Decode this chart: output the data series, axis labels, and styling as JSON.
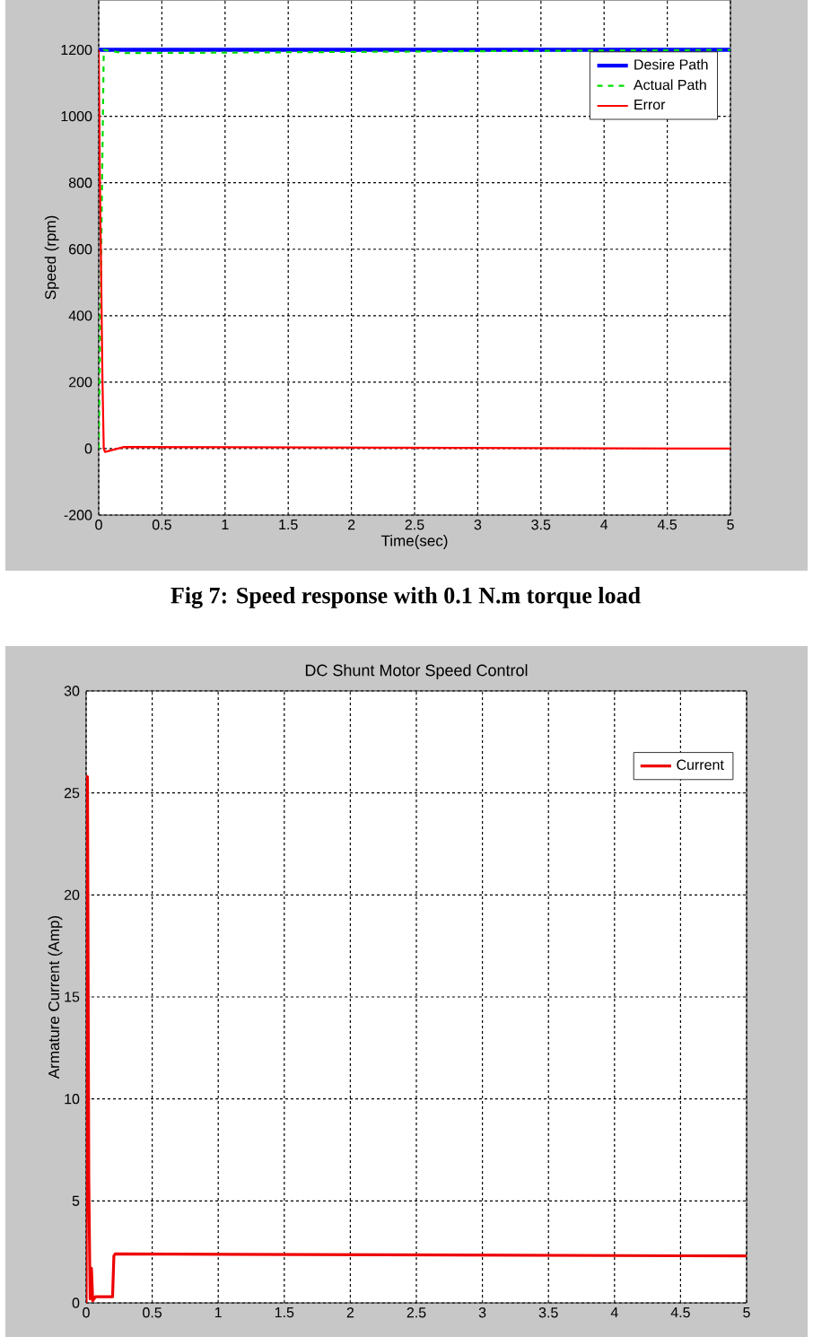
{
  "chart_data": [
    {
      "type": "line",
      "xlabel": "Time(sec)",
      "ylabel": "Speed (rpm)",
      "annotations": [
        "Fig 7: Speed response with 0.1 N.m torque load"
      ],
      "xlim": [
        0,
        5
      ],
      "ylim": [
        -200,
        1350
      ],
      "xticks": [
        0,
        0.5,
        1,
        1.5,
        2,
        2.5,
        3,
        3.5,
        4,
        4.5,
        5
      ],
      "yticks": [
        -200,
        0,
        200,
        400,
        600,
        800,
        1000,
        1200
      ],
      "grid": true,
      "legend": "top right",
      "series": [
        {
          "name": "Desire Path",
          "color": "#0000ff",
          "line_style": "solid",
          "x": [
            0,
            5
          ],
          "values": [
            1200,
            1200
          ]
        },
        {
          "name": "Actual Path",
          "color": "#00dd00",
          "line_style": "dashed",
          "x": [
            0,
            0.02,
            0.04,
            0.2,
            5
          ],
          "values": [
            0,
            600,
            1200,
            1190,
            1200
          ]
        },
        {
          "name": "Error",
          "color": "#ff0000",
          "line_style": "solid",
          "x": [
            0,
            0.01,
            0.03,
            0.04,
            0.05,
            0.2,
            5
          ],
          "values": [
            1200,
            800,
            200,
            0,
            -10,
            5,
            0
          ]
        }
      ]
    },
    {
      "type": "line",
      "title": "DC Shunt Motor Speed Control",
      "ylabel": "Armature Current (Amp)",
      "xlim": [
        0,
        5
      ],
      "ylim": [
        0,
        30
      ],
      "xticks": [
        0,
        0.5,
        1,
        1.5,
        2,
        2.5,
        3,
        3.5,
        4,
        4.5,
        5
      ],
      "yticks": [
        0,
        5,
        10,
        15,
        20,
        25,
        30
      ],
      "grid": true,
      "legend": "top right",
      "series": [
        {
          "name": "Current",
          "color": "#ee0000",
          "line_style": "solid",
          "x": [
            0,
            0.005,
            0.01,
            0.02,
            0.03,
            0.04,
            0.05,
            0.07,
            0.2,
            0.21,
            0.22,
            5
          ],
          "values": [
            0,
            25.8,
            25.8,
            6,
            0.2,
            1.7,
            0.1,
            0.3,
            0.3,
            2.3,
            2.4,
            2.3
          ]
        }
      ]
    }
  ]
}
